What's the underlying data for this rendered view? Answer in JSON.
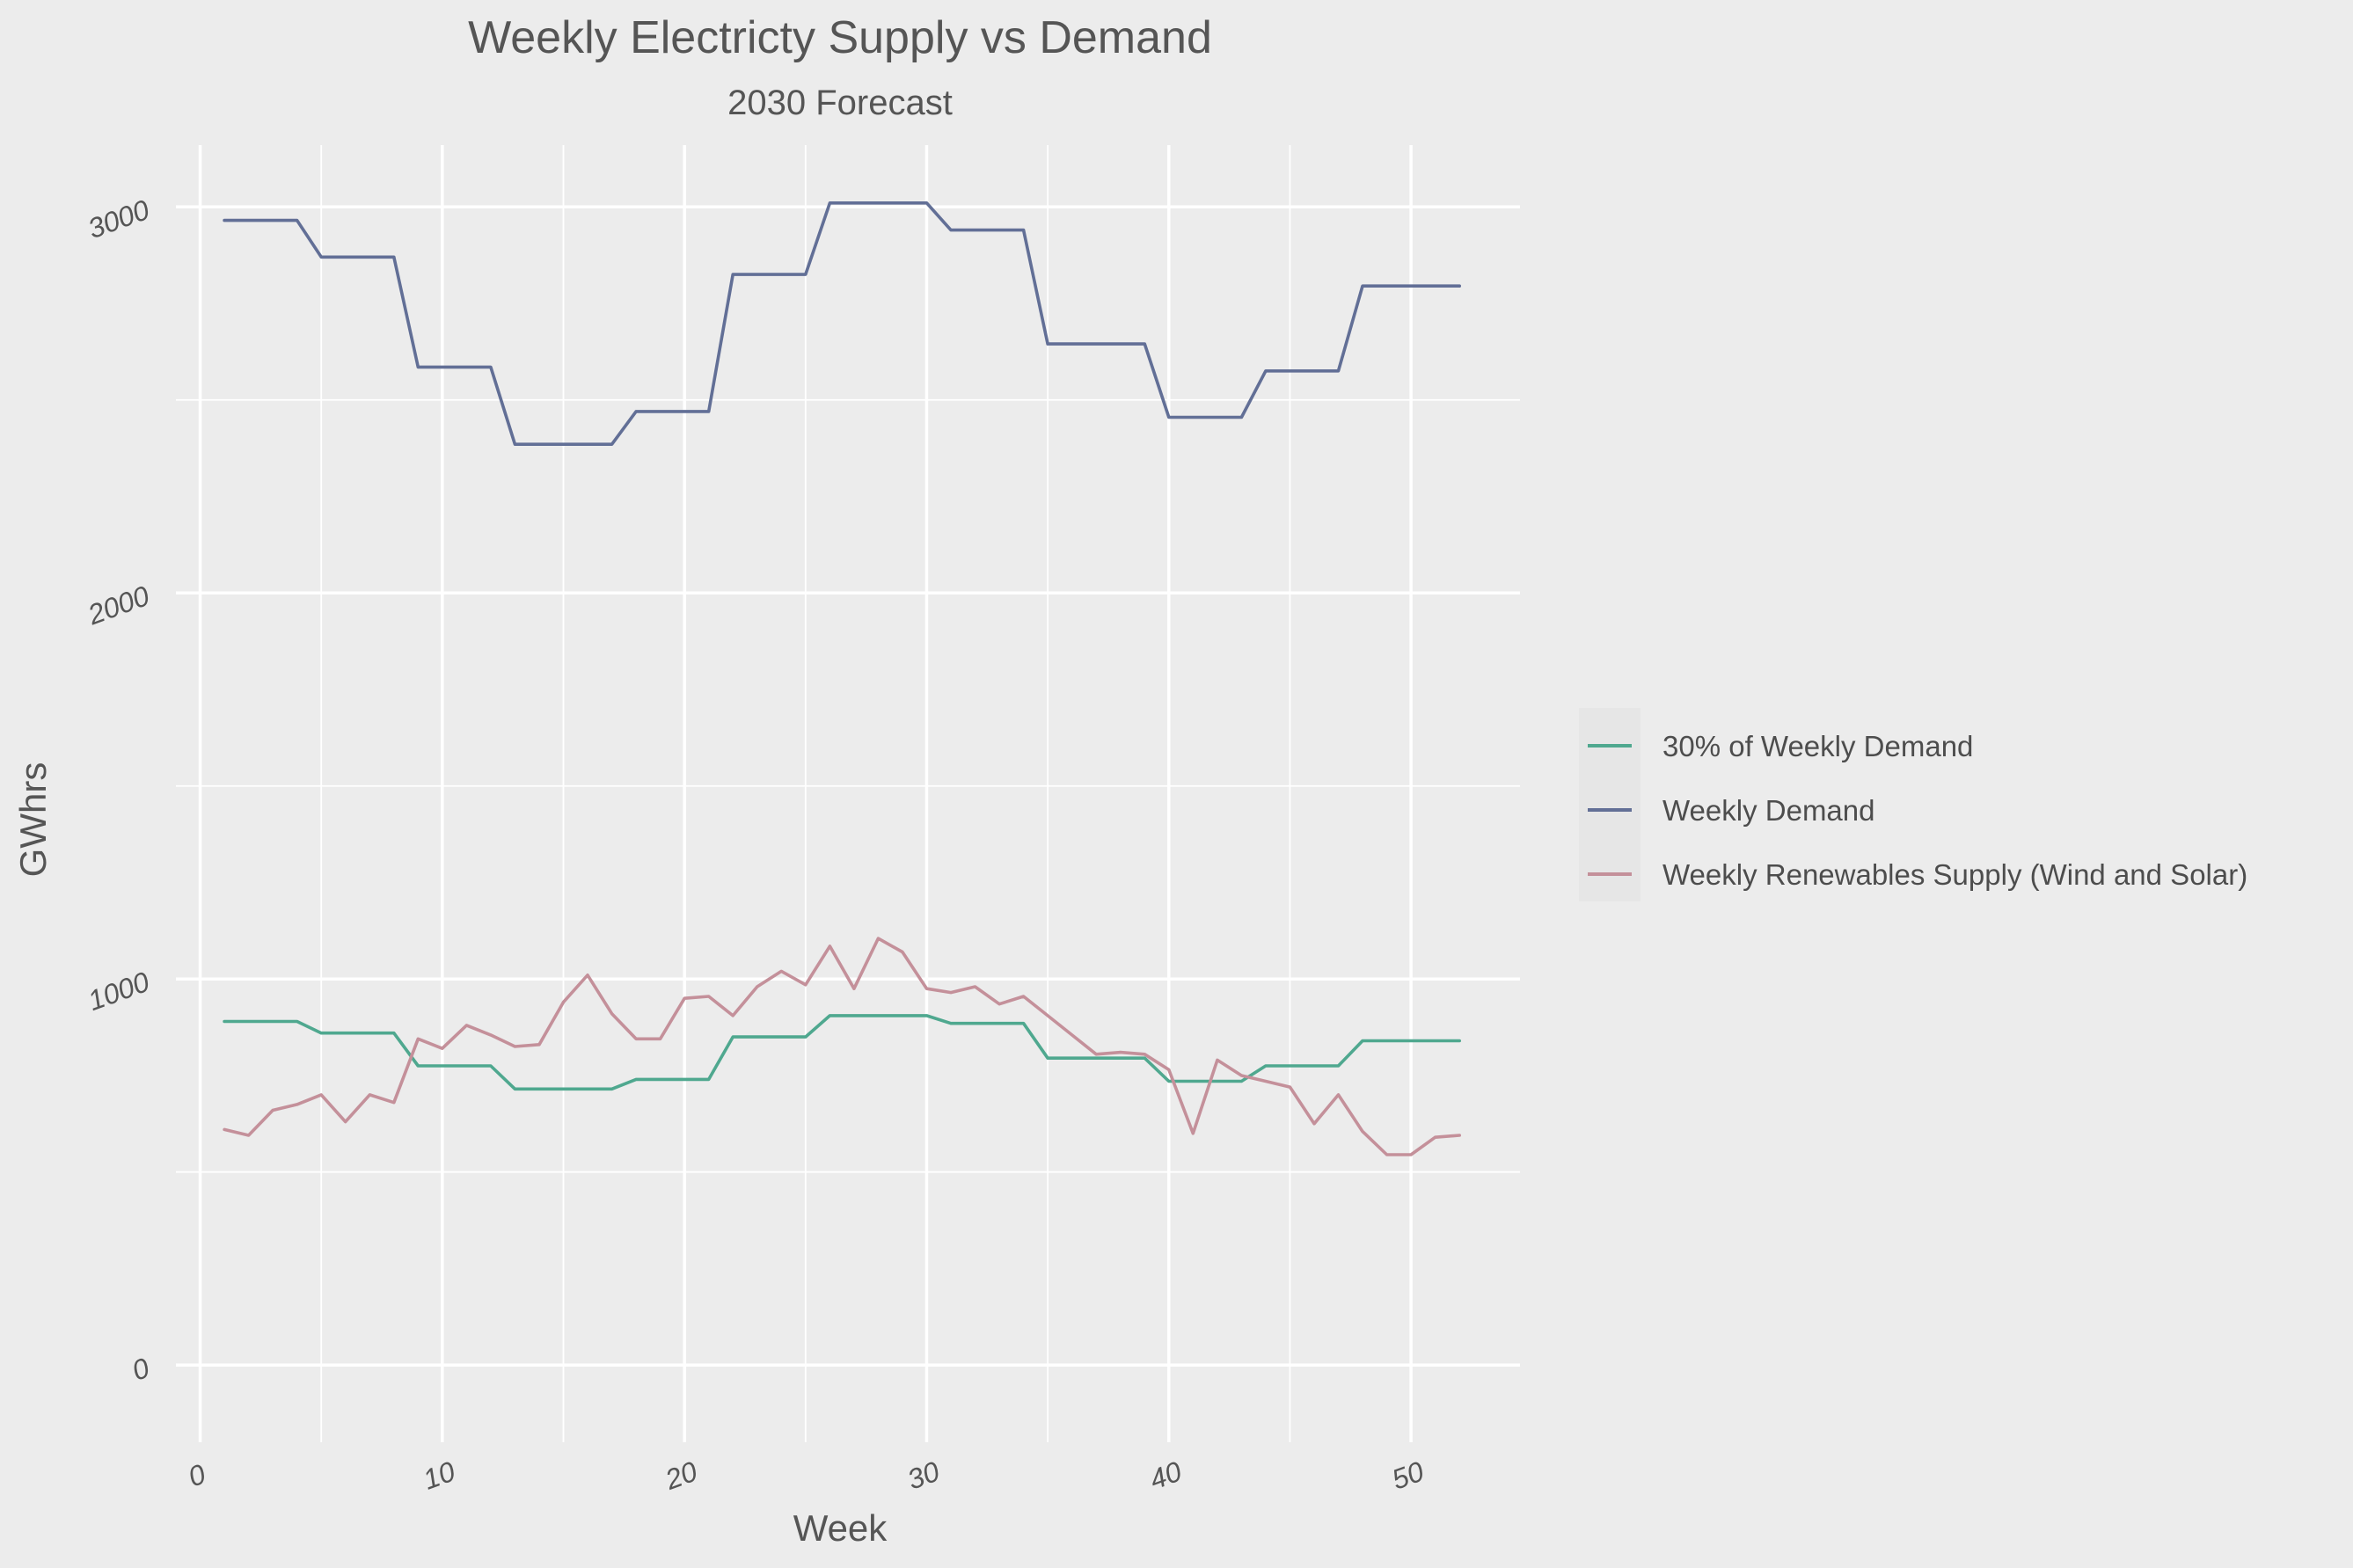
{
  "chart_data": {
    "type": "line",
    "title": "Weekly Electricty Supply vs Demand",
    "subtitle": "2030 Forecast",
    "xlabel": "Week",
    "ylabel": "GWhrs",
    "xlim": [
      -1,
      54.5
    ],
    "ylim": [
      -200,
      3160
    ],
    "x_ticks": [
      0,
      10,
      20,
      30,
      40,
      50
    ],
    "x_tick_labels": [
      "0",
      "10",
      "20",
      "30",
      "40",
      "50"
    ],
    "y_ticks": [
      0,
      1000,
      2000,
      3000
    ],
    "y_tick_labels": [
      "0",
      "1000",
      "2000",
      "3000"
    ],
    "grid": true,
    "legend_position": "right",
    "x": [
      1,
      2,
      3,
      4,
      5,
      6,
      7,
      8,
      9,
      10,
      11,
      12,
      13,
      14,
      15,
      16,
      17,
      18,
      19,
      20,
      21,
      22,
      23,
      24,
      25,
      26,
      27,
      28,
      29,
      30,
      31,
      32,
      33,
      34,
      35,
      36,
      37,
      38,
      39,
      40,
      41,
      42,
      43,
      44,
      45,
      46,
      47,
      48,
      49,
      50,
      51,
      52
    ],
    "series": [
      {
        "name": "30% of Weekly Demand",
        "color": "#4fa88f",
        "values": [
          890,
          890,
          890,
          890,
          860,
          860,
          860,
          860,
          775,
          775,
          775,
          775,
          715,
          715,
          715,
          715,
          715,
          740,
          740,
          740,
          740,
          850,
          850,
          850,
          850,
          905,
          905,
          905,
          905,
          905,
          885,
          885,
          885,
          885,
          795,
          795,
          795,
          795,
          795,
          735,
          735,
          735,
          735,
          775,
          775,
          775,
          775,
          840,
          840,
          840,
          840,
          840
        ]
      },
      {
        "name": "Weekly Demand",
        "color": "#626f96",
        "values": [
          2965,
          2965,
          2965,
          2965,
          2870,
          2870,
          2870,
          2870,
          2585,
          2585,
          2585,
          2585,
          2385,
          2385,
          2385,
          2385,
          2385,
          2470,
          2470,
          2470,
          2470,
          2825,
          2825,
          2825,
          2825,
          3010,
          3010,
          3010,
          3010,
          3010,
          2940,
          2940,
          2940,
          2940,
          2645,
          2645,
          2645,
          2645,
          2645,
          2455,
          2455,
          2455,
          2455,
          2575,
          2575,
          2575,
          2575,
          2795,
          2795,
          2795,
          2795,
          2795
        ]
      },
      {
        "name": "Weekly Renewables Supply (Wind and Solar)",
        "color": "#c4909a",
        "values": [
          610,
          595,
          660,
          675,
          700,
          630,
          700,
          680,
          845,
          820,
          880,
          855,
          825,
          830,
          940,
          1010,
          910,
          845,
          845,
          950,
          955,
          905,
          980,
          1020,
          985,
          1085,
          975,
          1105,
          1070,
          975,
          965,
          980,
          935,
          955,
          905,
          855,
          805,
          810,
          805,
          765,
          600,
          790,
          750,
          735,
          720,
          625,
          700,
          605,
          545,
          545,
          590,
          595
        ]
      }
    ]
  }
}
